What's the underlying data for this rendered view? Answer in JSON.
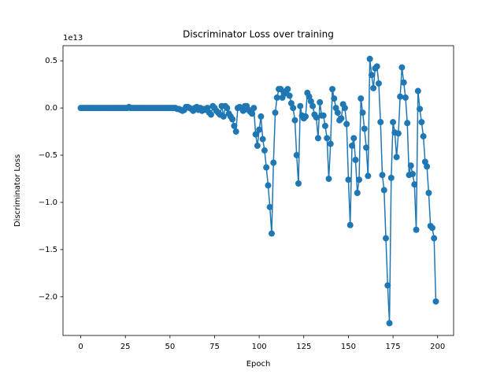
{
  "chart_data": {
    "type": "line",
    "title": "Discriminator Loss over training",
    "x_label": "Epoch",
    "y_label": "Discriminator Loss",
    "y_offset_label": "1e13",
    "color": "#1f77b4",
    "marker": "circle",
    "xlim": [
      -9.95,
      208.95
    ],
    "xticks": [
      0,
      25,
      50,
      75,
      100,
      125,
      150,
      175,
      200
    ],
    "ylim": [
      -2.41,
      0.66
    ],
    "yticks": [
      {
        "value": -2.0,
        "label": "−2.0"
      },
      {
        "value": -1.5,
        "label": "−1.5"
      },
      {
        "value": -1.0,
        "label": "−1.0"
      },
      {
        "value": -0.5,
        "label": "−0.5"
      },
      {
        "value": 0,
        "label": "0.0"
      },
      0.5
    ],
    "x": [
      0,
      1,
      2,
      3,
      4,
      5,
      6,
      7,
      8,
      9,
      10,
      11,
      12,
      13,
      14,
      15,
      16,
      17,
      18,
      19,
      20,
      21,
      22,
      23,
      24,
      25,
      26,
      27,
      28,
      29,
      30,
      31,
      32,
      33,
      34,
      35,
      36,
      37,
      38,
      39,
      40,
      41,
      42,
      43,
      44,
      45,
      46,
      47,
      48,
      49,
      50,
      51,
      52,
      53,
      54,
      55,
      56,
      57,
      58,
      59,
      60,
      61,
      62,
      63,
      64,
      65,
      66,
      67,
      68,
      69,
      70,
      71,
      72,
      73,
      74,
      75,
      76,
      77,
      78,
      79,
      80,
      81,
      82,
      83,
      84,
      85,
      86,
      87,
      88,
      89,
      90,
      91,
      92,
      93,
      94,
      95,
      96,
      97,
      98,
      99,
      100,
      101,
      102,
      103,
      104,
      105,
      106,
      107,
      108,
      109,
      110,
      111,
      112,
      113,
      114,
      115,
      116,
      117,
      118,
      119,
      120,
      121,
      122,
      123,
      124,
      125,
      126,
      127,
      128,
      129,
      130,
      131,
      132,
      133,
      134,
      135,
      136,
      137,
      138,
      139,
      140,
      141,
      142,
      143,
      144,
      145,
      146,
      147,
      148,
      149,
      150,
      151,
      152,
      153,
      154,
      155,
      156,
      157,
      158,
      159,
      160,
      161,
      162,
      163,
      164,
      165,
      166,
      167,
      168,
      169,
      170,
      171,
      172,
      173,
      174,
      175,
      176,
      177,
      178,
      179,
      180,
      181,
      182,
      183,
      184,
      185,
      186,
      187,
      188,
      189,
      190,
      191,
      192,
      193,
      194,
      195,
      196,
      197,
      198,
      199
    ],
    "values": [
      0,
      0,
      0,
      0,
      0,
      0,
      0,
      0,
      0,
      0,
      0,
      0,
      0,
      0,
      0,
      0,
      0,
      0,
      0,
      0,
      0,
      0,
      0,
      0,
      0,
      0,
      0,
      0.01,
      0,
      0,
      0,
      0,
      0,
      0,
      0,
      0,
      0,
      0,
      0,
      0,
      0,
      0,
      0,
      0,
      0,
      0,
      0,
      0,
      0,
      0,
      0,
      0,
      0,
      0,
      -0.01,
      -0.01,
      -0.02,
      -0.03,
      -0.02,
      0.01,
      0.01,
      0,
      -0.01,
      -0.03,
      0,
      0.01,
      -0.02,
      0,
      -0.03,
      -0.01,
      -0.02,
      0,
      -0.05,
      -0.07,
      0.02,
      0,
      -0.03,
      -0.05,
      -0.07,
      0.02,
      -0.09,
      0.02,
      0,
      -0.06,
      -0.09,
      -0.12,
      -0.19,
      -0.25,
      0,
      0.01,
      0,
      -0.03,
      0.02,
      0.02,
      -0.02,
      -0.04,
      -0.06,
      0,
      -0.28,
      -0.4,
      -0.23,
      -0.09,
      -0.33,
      -0.45,
      -0.63,
      -0.82,
      -1.05,
      -1.33,
      -0.58,
      -0.05,
      0.11,
      0.2,
      0.2,
      0.11,
      0.15,
      0.18,
      0.2,
      0.13,
      0.05,
      0,
      -0.13,
      -0.5,
      -0.8,
      0.02,
      -0.08,
      -0.11,
      -0.09,
      0.16,
      0.12,
      0.07,
      0.02,
      -0.07,
      -0.1,
      -0.32,
      0.06,
      -0.08,
      -0.08,
      -0.19,
      -0.32,
      -0.75,
      -0.38,
      0.2,
      0.1,
      0,
      -0.05,
      -0.13,
      -0.11,
      0.04,
      0,
      -0.17,
      -0.76,
      -1.24,
      -0.4,
      -0.32,
      -0.55,
      -0.9,
      -0.76,
      0.1,
      -0.05,
      -0.22,
      -0.42,
      -0.72,
      0.52,
      0.35,
      0.21,
      0.42,
      0.44,
      0.26,
      -0.15,
      -0.71,
      -0.87,
      -1.38,
      -1.88,
      -2.28,
      -0.74,
      -0.15,
      -0.26,
      -0.52,
      -0.27,
      0.12,
      0.43,
      0.27,
      0.11,
      -0.16,
      -0.71,
      -0.61,
      -0.7,
      -0.81,
      -1.29,
      0.18,
      -0.01,
      -0.15,
      -0.3,
      -0.57,
      -0.62,
      -0.9,
      -1.25,
      -1.27,
      -1.38,
      -2.05
    ]
  }
}
